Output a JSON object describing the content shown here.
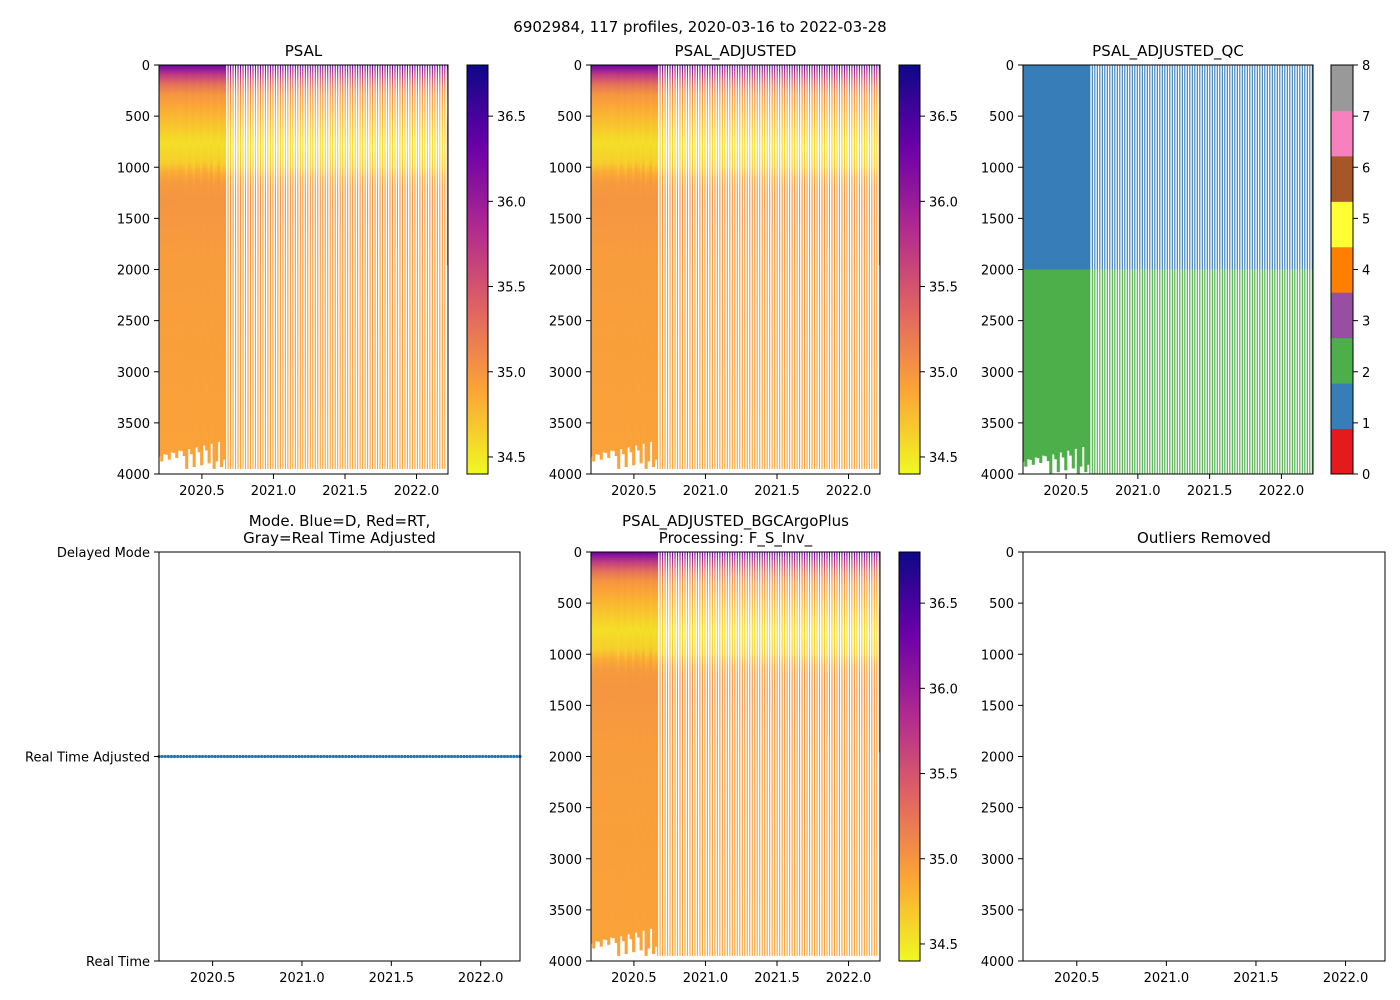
{
  "figure": {
    "suptitle": "6902984, 117 profiles, 2020-03-16 to 2022-03-28"
  },
  "colors": {
    "plasma": [
      "#f0f921",
      "#fca636",
      "#e16462",
      "#b12a90",
      "#6a00a8",
      "#0d0887"
    ],
    "qc": [
      "#e41a1c",
      "#377eb8",
      "#4daf4a",
      "#984ea3",
      "#ff7f00",
      "#ffff33",
      "#a65628",
      "#f781bf",
      "#999999"
    ],
    "mode_line": "#1f77b4"
  },
  "chart_data": [
    {
      "id": "psal",
      "type": "heatmap",
      "title": "PSAL",
      "variable": "PSAL",
      "xlim": [
        2020.2,
        2022.22
      ],
      "ylim": [
        4000,
        0
      ],
      "xticks": [
        "2020.5",
        "2021.0",
        "2021.5",
        "2022.0"
      ],
      "xtick_values": [
        2020.5,
        2021.0,
        2021.5,
        2022.0
      ],
      "yticks": [
        "0",
        "500",
        "1000",
        "1500",
        "2000",
        "2500",
        "3000",
        "3500",
        "4000"
      ],
      "ytick_values": [
        0,
        500,
        1000,
        1500,
        2000,
        2500,
        3000,
        3500,
        4000
      ],
      "profile_count": 117,
      "dense_until": 2020.67,
      "max_depth_deep": 3950,
      "max_depth_last": 1960,
      "salinity_profile": {
        "depth": [
          0,
          50,
          150,
          300,
          500,
          800,
          1000,
          1150,
          1400,
          2000,
          4000
        ],
        "value": [
          36.3,
          36.0,
          35.4,
          35.0,
          34.8,
          34.55,
          34.65,
          34.95,
          35.0,
          34.95,
          34.9
        ]
      },
      "colorbar": {
        "type": "continuous",
        "vmin": 34.4,
        "vmax": 36.8,
        "ticks": [
          "34.5",
          "35.0",
          "35.5",
          "36.0",
          "36.5"
        ],
        "tick_values": [
          34.5,
          35.0,
          35.5,
          36.0,
          36.5
        ]
      }
    },
    {
      "id": "psal_adjusted",
      "type": "heatmap",
      "title": "PSAL_ADJUSTED",
      "variable": "PSAL_ADJUSTED",
      "xlim": [
        2020.2,
        2022.22
      ],
      "ylim": [
        4000,
        0
      ],
      "xticks": [
        "2020.5",
        "2021.0",
        "2021.5",
        "2022.0"
      ],
      "xtick_values": [
        2020.5,
        2021.0,
        2021.5,
        2022.0
      ],
      "yticks": [
        "0",
        "500",
        "1000",
        "1500",
        "2000",
        "2500",
        "3000",
        "3500",
        "4000"
      ],
      "ytick_values": [
        0,
        500,
        1000,
        1500,
        2000,
        2500,
        3000,
        3500,
        4000
      ],
      "profile_count": 117,
      "dense_until": 2020.67,
      "max_depth_deep": 3950,
      "max_depth_last": 1960,
      "colorbar": {
        "type": "continuous",
        "vmin": 34.4,
        "vmax": 36.8,
        "ticks": [
          "34.5",
          "35.0",
          "35.5",
          "36.0",
          "36.5"
        ],
        "tick_values": [
          34.5,
          35.0,
          35.5,
          36.0,
          36.5
        ]
      }
    },
    {
      "id": "psal_adjusted_qc",
      "type": "heatmap",
      "title": "PSAL_ADJUSTED_QC",
      "variable": "PSAL_ADJUSTED_QC",
      "xlim": [
        2020.2,
        2022.22
      ],
      "ylim": [
        4000,
        0
      ],
      "xticks": [
        "2020.5",
        "2021.0",
        "2021.5",
        "2022.0"
      ],
      "xtick_values": [
        2020.5,
        2021.0,
        2021.5,
        2022.0
      ],
      "yticks": [
        "0",
        "500",
        "1000",
        "1500",
        "2000",
        "2500",
        "3000",
        "3500",
        "4000"
      ],
      "ytick_values": [
        0,
        500,
        1000,
        1500,
        2000,
        2500,
        3000,
        3500,
        4000
      ],
      "profile_count": 117,
      "dense_until": 2020.67,
      "qc_upper_flag": 1,
      "qc_lower_flag": 2,
      "qc_boundary_depth": 2000,
      "colorbar": {
        "type": "categorical",
        "vmin": 0,
        "vmax": 8,
        "ticks": [
          "0",
          "1",
          "2",
          "3",
          "4",
          "5",
          "6",
          "7",
          "8"
        ],
        "tick_values": [
          0,
          1,
          2,
          3,
          4,
          5,
          6,
          7,
          8
        ]
      }
    },
    {
      "id": "mode",
      "type": "line",
      "title": "Mode. Blue=D, Red=RT,",
      "title_line2": "Gray=Real Time Adjusted",
      "xlim": [
        2020.2,
        2022.22
      ],
      "xticks": [
        "2020.5",
        "2021.0",
        "2021.5",
        "2022.0"
      ],
      "xtick_values": [
        2020.5,
        2021.0,
        2021.5,
        2022.0
      ],
      "ycategories": [
        "Real Time",
        "Real Time Adjusted",
        "Delayed Mode"
      ],
      "ylim": [
        0,
        2
      ],
      "series": [
        {
          "name": "Real Time Adjusted",
          "level": 1,
          "x_start": 2020.2,
          "x_end": 2022.22,
          "count": 117
        }
      ]
    },
    {
      "id": "bgc_plus",
      "type": "heatmap",
      "title": "PSAL_ADJUSTED_BGCArgoPlus",
      "title_line2": "Processing: F_S_Inv_",
      "variable": "PSAL_ADJUSTED_BGCArgoPlus",
      "xlim": [
        2020.2,
        2022.22
      ],
      "ylim": [
        4000,
        0
      ],
      "xticks": [
        "2020.5",
        "2021.0",
        "2021.5",
        "2022.0"
      ],
      "xtick_values": [
        2020.5,
        2021.0,
        2021.5,
        2022.0
      ],
      "yticks": [
        "0",
        "500",
        "1000",
        "1500",
        "2000",
        "2500",
        "3000",
        "3500",
        "4000"
      ],
      "ytick_values": [
        0,
        500,
        1000,
        1500,
        2000,
        2500,
        3000,
        3500,
        4000
      ],
      "profile_count": 117,
      "dense_until": 2020.67,
      "max_depth_deep": 3950,
      "max_depth_last": 1960,
      "colorbar": {
        "type": "continuous",
        "vmin": 34.4,
        "vmax": 36.8,
        "ticks": [
          "34.5",
          "35.0",
          "35.5",
          "36.0",
          "36.5"
        ],
        "tick_values": [
          34.5,
          35.0,
          35.5,
          36.0,
          36.5
        ]
      }
    },
    {
      "id": "outliers",
      "type": "scatter",
      "title": "Outliers Removed",
      "xlim": [
        2020.2,
        2022.22
      ],
      "ylim": [
        4000,
        0
      ],
      "xticks": [
        "2020.5",
        "2021.0",
        "2021.5",
        "2022.0"
      ],
      "xtick_values": [
        2020.5,
        2021.0,
        2021.5,
        2022.0
      ],
      "yticks": [
        "0",
        "500",
        "1000",
        "1500",
        "2000",
        "2500",
        "3000",
        "3500",
        "4000"
      ],
      "ytick_values": [
        0,
        500,
        1000,
        1500,
        2000,
        2500,
        3000,
        3500,
        4000
      ],
      "points": []
    }
  ]
}
